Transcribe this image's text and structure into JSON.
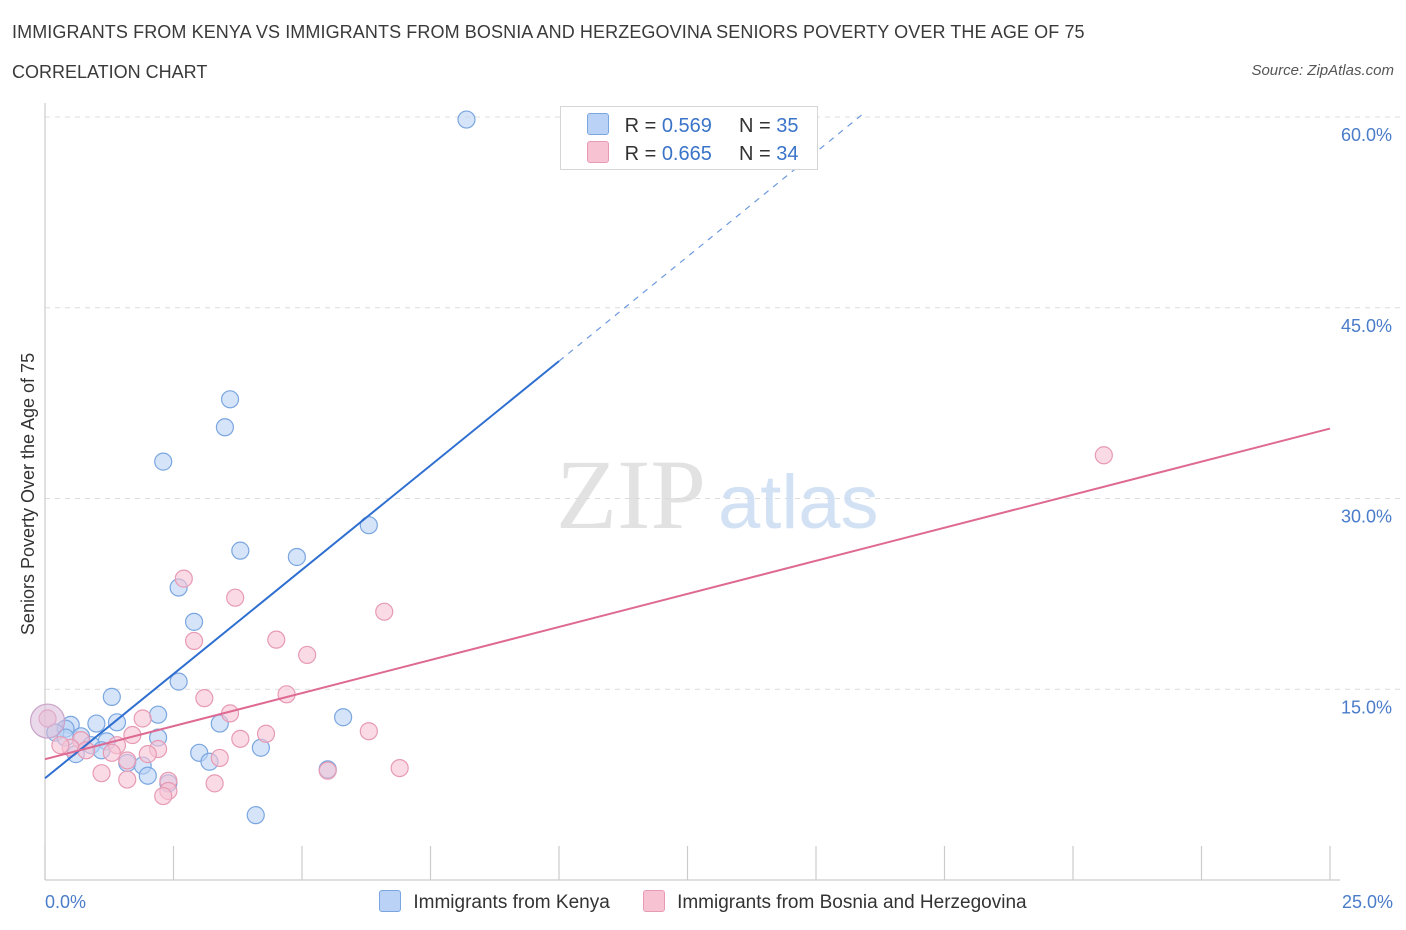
{
  "header": {
    "title": "IMMIGRANTS FROM KENYA VS IMMIGRANTS FROM BOSNIA AND HERZEGOVINA SENIORS POVERTY OVER THE AGE OF 75",
    "subtitle": "CORRELATION CHART",
    "source": "Source: ZipAtlas.com"
  },
  "watermark": {
    "zip": "ZIP",
    "atlas": "atlas"
  },
  "legend_top": [
    {
      "r_label": "R = ",
      "r_value": "0.569",
      "n_label": "N = ",
      "n_value": "35"
    },
    {
      "r_label": "R = ",
      "r_value": "0.665",
      "n_label": "N = ",
      "n_value": "34"
    }
  ],
  "colors": {
    "kenya_fill": "#b9d2f5",
    "kenya_stroke": "#7aa6e0",
    "kenya_line": "#2f6fd0",
    "bosnia_fill": "#f7c3d3",
    "bosnia_stroke": "#e79ab4",
    "bosnia_line": "#de6a93",
    "grid": "#dcdcdc",
    "tick_text": "#4a7cc9"
  },
  "chart_data": {
    "type": "scatter",
    "title": "IMMIGRANTS FROM KENYA VS IMMIGRANTS FROM BOSNIA AND HERZEGOVINA SENIORS POVERTY OVER THE AGE OF 75",
    "xlabel": "",
    "ylabel": "Seniors Poverty Over the Age of 75",
    "xlim": [
      0,
      25
    ],
    "ylim": [
      0,
      60
    ],
    "x_tick_labels": [
      "0.0%",
      "25.0%"
    ],
    "y_ticks": [
      15,
      30,
      45,
      60
    ],
    "y_tick_labels": [
      "15.0%",
      "30.0%",
      "45.0%",
      "60.0%"
    ],
    "grid": "horizontal dashed",
    "legend_position": "bottom",
    "series": [
      {
        "name": "Immigrants from Kenya",
        "r": 0.569,
        "n": 35,
        "trend": {
          "x0": 0,
          "y0": 8.0,
          "x1": 10.0,
          "y1": 40.8,
          "dashed_to_x": 15.9,
          "dashed_to_y": 60.2
        },
        "points": [
          [
            8.2,
            59.8
          ],
          [
            3.6,
            37.8
          ],
          [
            3.5,
            35.6
          ],
          [
            2.3,
            32.9
          ],
          [
            6.3,
            27.9
          ],
          [
            3.8,
            25.9
          ],
          [
            4.9,
            25.4
          ],
          [
            2.6,
            23.0
          ],
          [
            2.9,
            20.3
          ],
          [
            2.6,
            15.6
          ],
          [
            1.3,
            14.4
          ],
          [
            2.2,
            13.0
          ],
          [
            5.8,
            12.8
          ],
          [
            1.4,
            12.4
          ],
          [
            3.4,
            12.3
          ],
          [
            1.0,
            12.3
          ],
          [
            0.5,
            12.2
          ],
          [
            0.4,
            11.9
          ],
          [
            0.7,
            11.3
          ],
          [
            0.2,
            11.6
          ],
          [
            0.4,
            11.2
          ],
          [
            1.2,
            10.9
          ],
          [
            2.2,
            11.2
          ],
          [
            4.2,
            10.4
          ],
          [
            0.9,
            10.6
          ],
          [
            1.1,
            10.2
          ],
          [
            3.0,
            10.0
          ],
          [
            1.6,
            9.2
          ],
          [
            3.2,
            9.3
          ],
          [
            0.6,
            9.9
          ],
          [
            1.9,
            9.0
          ],
          [
            5.5,
            8.7
          ],
          [
            2.0,
            8.2
          ],
          [
            2.4,
            7.6
          ],
          [
            4.1,
            5.1
          ]
        ]
      },
      {
        "name": "Immigrants from Bosnia and Herzegovina",
        "r": 0.665,
        "n": 34,
        "trend": {
          "x0": 0,
          "y0": 9.5,
          "x1": 25,
          "y1": 35.5
        },
        "points": [
          [
            0.05,
            12.7
          ],
          [
            20.6,
            33.4
          ],
          [
            2.7,
            23.7
          ],
          [
            3.7,
            22.2
          ],
          [
            6.6,
            21.1
          ],
          [
            2.9,
            18.8
          ],
          [
            4.5,
            18.9
          ],
          [
            5.1,
            17.7
          ],
          [
            4.7,
            14.6
          ],
          [
            3.1,
            14.3
          ],
          [
            3.6,
            13.1
          ],
          [
            1.9,
            12.7
          ],
          [
            1.7,
            11.4
          ],
          [
            4.3,
            11.5
          ],
          [
            6.3,
            11.7
          ],
          [
            3.8,
            11.1
          ],
          [
            0.7,
            11.0
          ],
          [
            1.4,
            10.6
          ],
          [
            0.5,
            10.4
          ],
          [
            2.2,
            10.3
          ],
          [
            0.8,
            10.2
          ],
          [
            1.3,
            10.0
          ],
          [
            2.0,
            9.9
          ],
          [
            3.4,
            9.6
          ],
          [
            1.6,
            9.4
          ],
          [
            0.3,
            10.6
          ],
          [
            6.9,
            8.8
          ],
          [
            1.1,
            8.4
          ],
          [
            5.5,
            8.6
          ],
          [
            1.6,
            7.9
          ],
          [
            2.4,
            7.8
          ],
          [
            3.3,
            7.6
          ],
          [
            2.4,
            7.0
          ],
          [
            2.3,
            6.6
          ]
        ]
      }
    ]
  }
}
